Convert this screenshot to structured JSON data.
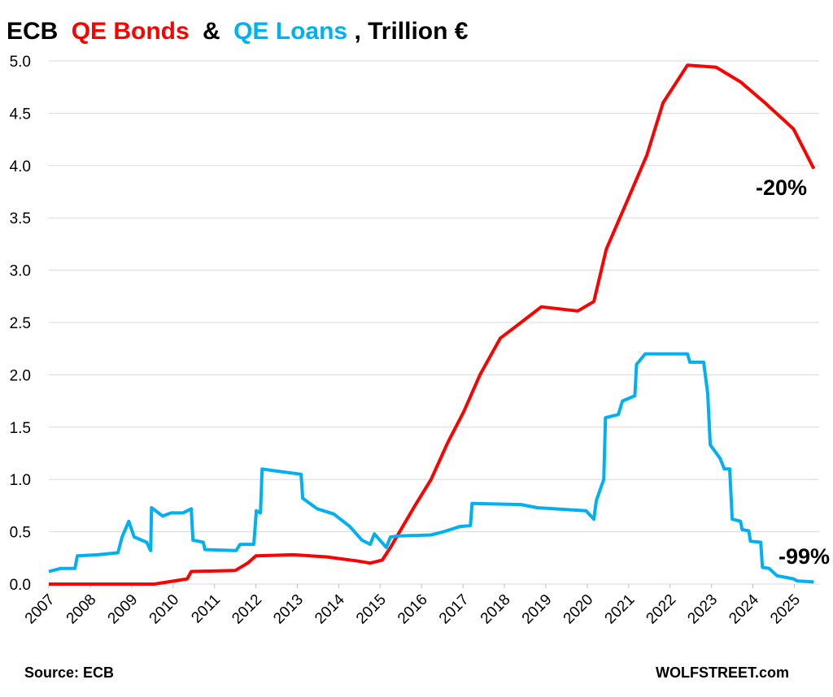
{
  "chart_data": {
    "type": "line",
    "title": [
      "ECB",
      "&",
      ", Trillion €"
    ],
    "xlim": [
      2007,
      2025.6
    ],
    "xticks": [
      2007,
      2008,
      2009,
      2010,
      2011,
      2012,
      2013,
      2014,
      2015,
      2016,
      2017,
      2018,
      2019,
      2020,
      2021,
      2022,
      2023,
      2024,
      2025
    ],
    "ylim": [
      0,
      5
    ],
    "yticks": [
      {
        "value": 0,
        "label": "0.0"
      },
      0.5,
      {
        "value": 1,
        "label": "1.0"
      },
      1.5,
      {
        "value": 2,
        "label": "2.0"
      },
      2.5,
      {
        "value": 3,
        "label": "3.0"
      },
      3.5,
      {
        "value": 4,
        "label": "4.0"
      },
      4.5,
      {
        "value": 5,
        "label": "5.0"
      }
    ],
    "grid": true,
    "series": [
      {
        "name": "QE Bonds",
        "color": "#ff0000",
        "x": [
          2007,
          2009.55,
          2010.34,
          2010.44,
          2011.5,
          2011.8,
          2012.0,
          2012.9,
          2013.7,
          2014.47,
          2014.76,
          2015.05,
          2015.25,
          2015.84,
          2016.23,
          2016.63,
          2017.02,
          2017.41,
          2017.9,
          2018.4,
          2018.89,
          2019.77,
          2020.16,
          2020.46,
          2020.95,
          2021.44,
          2021.83,
          2022.42,
          2023.11,
          2023.7,
          2024.29,
          2024.98,
          2025.47
        ],
        "values": [
          0,
          0,
          0.05,
          0.12,
          0.13,
          0.2,
          0.27,
          0.28,
          0.26,
          0.22,
          0.2,
          0.23,
          0.35,
          0.75,
          1.0,
          1.35,
          1.65,
          2.0,
          2.35,
          2.5,
          2.65,
          2.61,
          2.7,
          3.2,
          3.65,
          4.1,
          4.6,
          4.96,
          4.94,
          4.8,
          4.6,
          4.35,
          3.97
        ]
      },
      {
        "name": "QE Loans",
        "color": "#00b0f0",
        "x": [
          2007,
          2007.29,
          2007.63,
          2007.69,
          2008.18,
          2008.67,
          2008.77,
          2008.93,
          2009.06,
          2009.36,
          2009.46,
          2009.48,
          2009.75,
          2009.95,
          2010.24,
          2010.44,
          2010.48,
          2010.73,
          2010.77,
          2011.52,
          2011.62,
          2011.95,
          2012.01,
          2012.11,
          2012.15,
          2012.5,
          2013.09,
          2013.13,
          2013.48,
          2013.88,
          2014.27,
          2014.56,
          2014.76,
          2014.86,
          2015.15,
          2015.25,
          2015.45,
          2016.23,
          2016.53,
          2016.92,
          2017.18,
          2017.22,
          2018.4,
          2018.79,
          2019.97,
          2020.16,
          2020.22,
          2020.4,
          2020.44,
          2020.75,
          2020.85,
          2021.15,
          2021.19,
          2021.4,
          2022.42,
          2022.48,
          2022.81,
          2022.91,
          2022.97,
          2023.21,
          2023.31,
          2023.44,
          2023.5,
          2023.7,
          2023.74,
          2023.9,
          2023.94,
          2024.19,
          2024.23,
          2024.39,
          2024.58,
          2024.98,
          2025.07,
          2025.47
        ],
        "values": [
          0.12,
          0.15,
          0.15,
          0.27,
          0.28,
          0.3,
          0.45,
          0.6,
          0.45,
          0.4,
          0.32,
          0.73,
          0.65,
          0.68,
          0.68,
          0.72,
          0.42,
          0.4,
          0.33,
          0.32,
          0.38,
          0.38,
          0.7,
          0.68,
          1.1,
          1.08,
          1.05,
          0.82,
          0.72,
          0.67,
          0.55,
          0.42,
          0.38,
          0.48,
          0.35,
          0.45,
          0.46,
          0.47,
          0.5,
          0.55,
          0.56,
          0.77,
          0.76,
          0.73,
          0.7,
          0.62,
          0.8,
          1.0,
          1.59,
          1.62,
          1.75,
          1.8,
          2.1,
          2.2,
          2.2,
          2.12,
          2.12,
          1.82,
          1.33,
          1.2,
          1.1,
          1.1,
          0.62,
          0.6,
          0.52,
          0.51,
          0.41,
          0.4,
          0.16,
          0.15,
          0.08,
          0.05,
          0.03,
          0.02
        ]
      }
    ],
    "annotations": [
      {
        "text": "-20%",
        "color": "#ff0000"
      },
      {
        "text": "-99%",
        "color": "#00b0f0"
      }
    ],
    "source": "Source: ECB",
    "credit": "WOLFSTREET.com"
  }
}
